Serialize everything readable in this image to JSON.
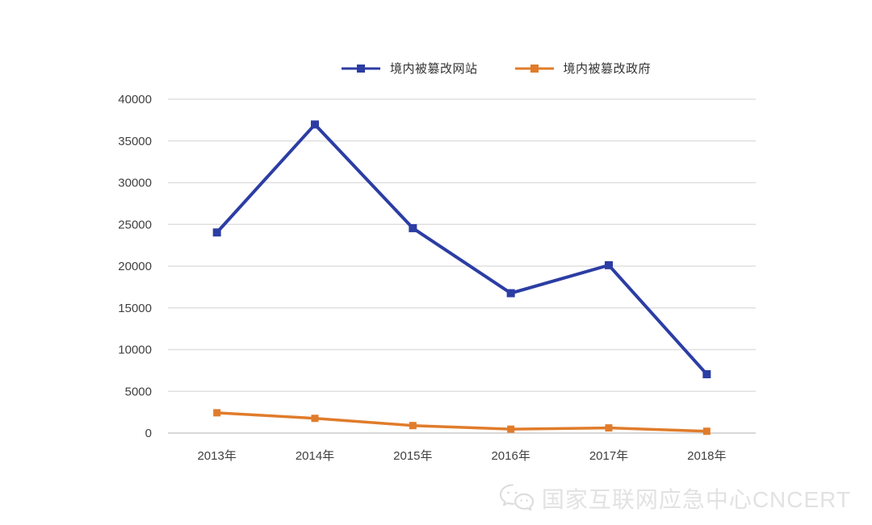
{
  "chart_data": {
    "type": "line",
    "title": "",
    "xlabel": "",
    "ylabel": "",
    "categories": [
      "2013年",
      "2014年",
      "2015年",
      "2016年",
      "2017年",
      "2018年"
    ],
    "series": [
      {
        "name": "境内被篡改网站",
        "color": "#2c3da4",
        "marker": "square",
        "values": [
          24034,
          36969,
          24550,
          16758,
          20111,
          7049
        ]
      },
      {
        "name": "境内被篡改政府",
        "color": "#e07c2b",
        "marker": "square",
        "values": [
          2430,
          1763,
          898,
          467,
          618,
          216
        ]
      }
    ],
    "ylim": [
      0,
      40000
    ],
    "yticks": [
      0,
      5000,
      10000,
      15000,
      20000,
      25000,
      30000,
      35000,
      40000
    ],
    "grid": "horizontal-only",
    "legend_position": "top-center"
  },
  "watermark": {
    "icon": "wechat-logo",
    "text": "国家互联网应急中心CNCERT"
  },
  "colors": {
    "background": "#ffffff",
    "gridline": "#e0e0e0",
    "zero_line": "#cccccc",
    "axis_text": "#404040",
    "legend_text": "#333333",
    "watermark": "#e2e2e2"
  }
}
